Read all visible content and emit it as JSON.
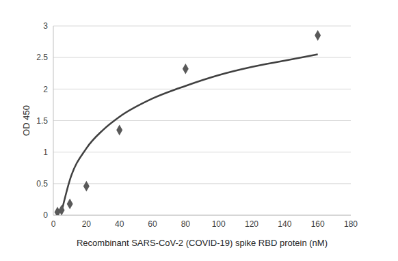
{
  "chart_data": {
    "type": "scatter",
    "xlabel": "Recombinant SARS-CoV-2 (COVID-19) spike RBD protein (nM)",
    "ylabel": "OD 450",
    "xlim": [
      0,
      180
    ],
    "xticks": [
      0,
      20,
      40,
      60,
      80,
      100,
      120,
      140,
      160,
      180
    ],
    "ylim": [
      0,
      3
    ],
    "yticks": [
      0,
      0.5,
      1,
      1.5,
      2,
      2.5,
      3
    ],
    "grid": true,
    "series": [
      {
        "type": "scatter",
        "marker": "diamond",
        "color": "#595959",
        "x": [
          2.5,
          5,
          10,
          20,
          40,
          80,
          160
        ],
        "values": [
          0.05,
          0.08,
          0.18,
          0.46,
          1.35,
          2.32,
          2.85
        ]
      },
      {
        "type": "line",
        "line_style": "solid",
        "color": "#404040",
        "x": [
          5,
          10,
          20,
          30,
          40,
          60,
          80,
          100,
          120,
          140,
          160
        ],
        "values": [
          0.06,
          0.56,
          1.06,
          1.35,
          1.56,
          1.85,
          2.05,
          2.22,
          2.35,
          2.45,
          2.55
        ]
      }
    ]
  }
}
